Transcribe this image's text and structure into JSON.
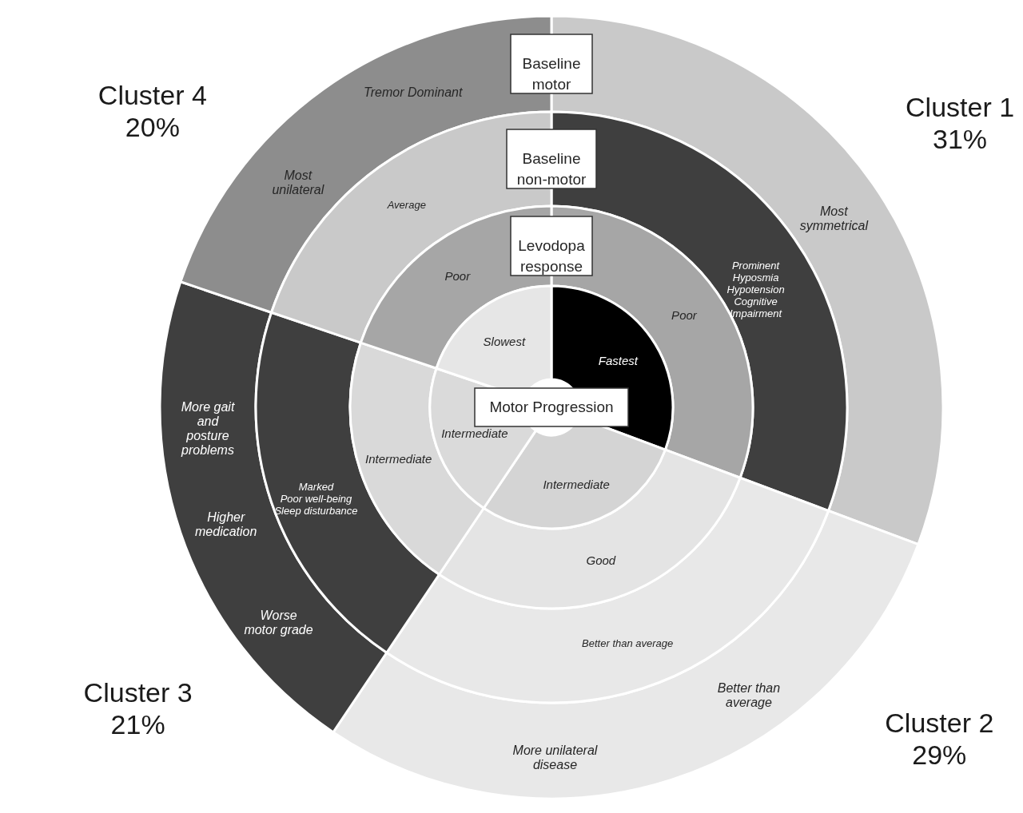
{
  "chart_data": {
    "type": "donut",
    "categories": [
      "Cluster 1",
      "Cluster 2",
      "Cluster 3",
      "Cluster 4"
    ],
    "value_labels": [
      "31%",
      "29%",
      "21%",
      "20%"
    ],
    "series": [
      {
        "name": "Baseline\nmotor",
        "values": [
          31,
          29,
          21,
          20
        ],
        "colors": [
          "#c9c9c9",
          "#e8e8e8",
          "#3f3f3f",
          "#8d8d8d"
        ],
        "value_labels": [
          "Most\nsymmetrical",
          "Better than\naverage\n\nMore unilateral\ndisease",
          "More gait\nand\nposture\nproblems\n\nHigher\nmedication\n\nWorse\nmotor grade",
          "Tremor Dominant\n\nMost\nunilateral"
        ]
      },
      {
        "name": "Baseline\nnon-motor",
        "values": [
          31,
          29,
          21,
          20
        ],
        "colors": [
          "#3f3f3f",
          "#e8e8e8",
          "#3f3f3f",
          "#c9c9c9"
        ],
        "value_labels": [
          "Prominent\nHyposmia\nHypotension\nCognitive\nImpairment",
          "Better than average",
          "Marked\nPoor well-being\nSleep disturbance",
          "Average"
        ]
      },
      {
        "name": "Levodopa\nresponse",
        "values": [
          31,
          29,
          21,
          20
        ],
        "colors": [
          "#a6a6a6",
          "#e4e4e4",
          "#d9d9d9",
          "#a6a6a6"
        ],
        "value_labels": [
          "Poor",
          "Good",
          "Intermediate",
          "Poor"
        ]
      },
      {
        "name": "Motor Progression",
        "values": [
          31,
          29,
          21,
          20
        ],
        "colors": [
          "#000000",
          "#d4d4d4",
          "#dadada",
          "#e6e6e6"
        ],
        "value_labels": [
          "Fastest",
          "Intermediate",
          "Intermediate",
          "Slowest"
        ]
      }
    ]
  }
}
